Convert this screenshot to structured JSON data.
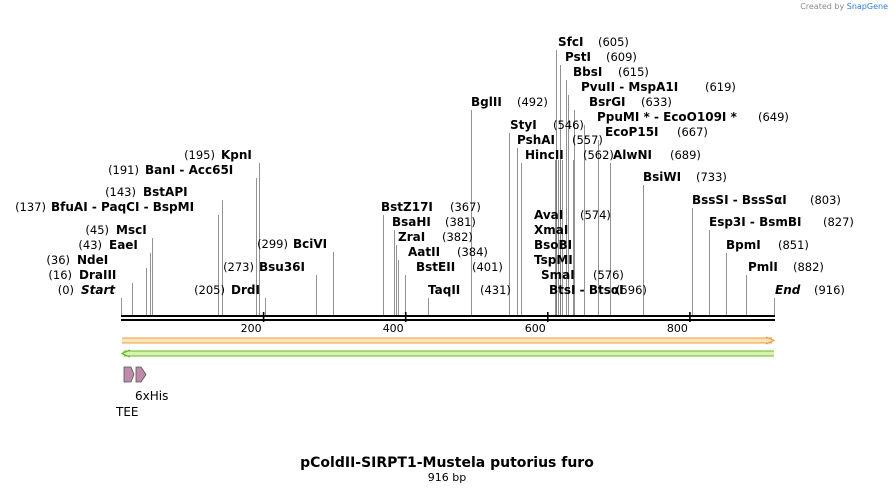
{
  "credit": {
    "prefix": "Created by",
    "brand": "SnapGene"
  },
  "title": "pColdII-SIRPT1-Mustela putorius furo",
  "subtitle": "916 bp",
  "sequence_length": 916,
  "ticks": [
    "200",
    "400",
    "600",
    "800"
  ],
  "colors": {
    "forward_strand": "#e8a040",
    "forward_fill": "#fde3b8",
    "reverse_strand": "#66bb22",
    "reverse_fill": "#d6f2b0",
    "feature": "#c08aaa"
  },
  "sites": [
    {
      "pos": "(0)",
      "name": "Start",
      "italic": true
    },
    {
      "pos": "(16)",
      "name": "DraIII"
    },
    {
      "pos": "(36)",
      "name": "NdeI"
    },
    {
      "pos": "(43)",
      "name": "EaeI"
    },
    {
      "pos": "(45)",
      "name": "MscI"
    },
    {
      "pos": "(137)",
      "name": "BfuAI  -  PaqCI  -  BspMI"
    },
    {
      "pos": "(143)",
      "name": "BstAPI"
    },
    {
      "pos": "(191)",
      "name": "BanI  -  Acc65I"
    },
    {
      "pos": "(195)",
      "name": "KpnI"
    },
    {
      "pos": "(205)",
      "name": "DrdI"
    },
    {
      "pos": "(273)",
      "name": "Bsu36I"
    },
    {
      "pos": "(299)",
      "name": "BciVI"
    },
    {
      "pos": "(367)",
      "name": "BstZ17I"
    },
    {
      "pos": "(381)",
      "name": "BsaHI"
    },
    {
      "pos": "(382)",
      "name": "ZraI"
    },
    {
      "pos": "(384)",
      "name": "AatII"
    },
    {
      "pos": "(401)",
      "name": "BstEII"
    },
    {
      "pos": "(431)",
      "name": "TaqII"
    },
    {
      "pos": "(492)",
      "name": "BglII"
    },
    {
      "pos": "(546)",
      "name": "StyI"
    },
    {
      "pos": "(557)",
      "name": "PshAI"
    },
    {
      "pos": "(562)",
      "name": "HincII"
    },
    {
      "pos": "(574)",
      "name": "AvaI"
    },
    {
      "pos": "",
      "name": "XmaI"
    },
    {
      "pos": "",
      "name": "BsoBI"
    },
    {
      "pos": "",
      "name": "TspMI"
    },
    {
      "pos": "(576)",
      "name": "SmaI"
    },
    {
      "pos": "(596)",
      "name": "BtsI  -  BtsαI"
    },
    {
      "pos": "(605)",
      "name": "SfcI"
    },
    {
      "pos": "(609)",
      "name": "PstI"
    },
    {
      "pos": "(615)",
      "name": "BbsI"
    },
    {
      "pos": "(619)",
      "name": "PvuII  -  MspA1I"
    },
    {
      "pos": "(633)",
      "name": "BsrGI"
    },
    {
      "pos": "(649)",
      "name": "PpuMI *  -  EcoO109I *"
    },
    {
      "pos": "(667)",
      "name": "EcoP15I"
    },
    {
      "pos": "(689)",
      "name": "AlwNI"
    },
    {
      "pos": "(733)",
      "name": "BsiWI"
    },
    {
      "pos": "(803)",
      "name": "BssSI  -  BssSαI"
    },
    {
      "pos": "(827)",
      "name": "Esp3I  -  BsmBI"
    },
    {
      "pos": "(851)",
      "name": "BpmI"
    },
    {
      "pos": "(882)",
      "name": "PmlI"
    },
    {
      "pos": "(916)",
      "name": "End",
      "italic": true
    }
  ],
  "features": [
    {
      "name": "TEE"
    },
    {
      "name": "6xHis"
    }
  ]
}
